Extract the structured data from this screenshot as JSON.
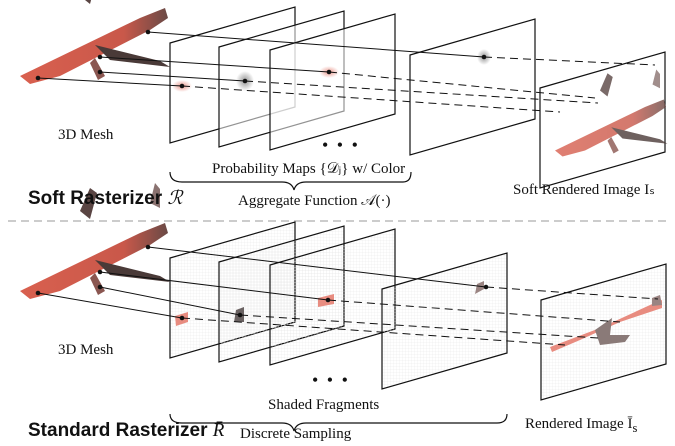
{
  "top": {
    "mesh_label": "3D Mesh",
    "maps_label": "Probability Maps {𝒟ⱼ} w/ Color",
    "aggregate_label": "Aggregate Function 𝒜(·)",
    "output_label": "Soft Rendered Image Iₛ",
    "title": "Soft Rasterizer",
    "title_symbol": "ℛ"
  },
  "bottom": {
    "mesh_label": "3D Mesh",
    "fragments_label": "Shaded Fragments",
    "sampling_label": "Discrete Sampling",
    "output_label": "Rendered Image Ī",
    "output_sub": "s",
    "title": "Standard Rasterizer",
    "title_symbol": "R̄"
  },
  "ellipsis": "• • •",
  "colors": {
    "mesh": "#d9604f",
    "mesh_dark": "#4a3a38",
    "fragment": "#e88c80",
    "divider": "#bbbbbb"
  }
}
